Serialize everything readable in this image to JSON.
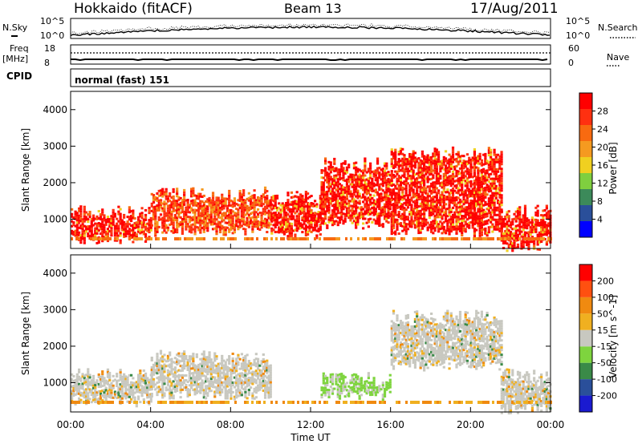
{
  "header": {
    "title": "Hokkaido (fitACF)",
    "beam": "Beam 13",
    "date": "17/Aug/2011"
  },
  "top_panels": {
    "nsky_label": "N.Sky",
    "nsky_ticks": [
      "10^5",
      "10^0"
    ],
    "nsearch_label": "N.Search",
    "nsearch_ticks": [
      "10^5",
      "10^0"
    ],
    "freq_label_1": "Freq",
    "freq_label_2": "[MHz]",
    "freq_ticks": [
      "18",
      "8"
    ],
    "nave_label": "Nave",
    "nave_ticks": [
      "60",
      "0"
    ],
    "cpid_label": "CPID",
    "cpid_value": "normal (fast) 151"
  },
  "colors": {
    "power": [
      "#0000ff",
      "#2a4f9a",
      "#3c8a5a",
      "#7fcf3f",
      "#f0d020",
      "#f59a20",
      "#f86a10",
      "#ff3010",
      "#ff0000"
    ],
    "velocity": [
      "#1a1ad0",
      "#2a4f9a",
      "#3a8a48",
      "#7ed43e",
      "#c8c8c0",
      "#f0b020",
      "#f08a10",
      "#ff5010",
      "#ff0000"
    ]
  },
  "chart_data": [
    {
      "type": "heatmap",
      "name": "power",
      "xlabel": "Time UT",
      "ylabel": "Slant Range [km]",
      "x_ticks": [
        "00:00",
        "04:00",
        "08:00",
        "12:00",
        "16:00",
        "20:00",
        "00:00"
      ],
      "y_ticks": [
        "1000",
        "2000",
        "3000",
        "4000"
      ],
      "ylim": [
        200,
        4500
      ],
      "colorbar_label": "Power [dB]",
      "colorbar_ticks": [
        "28",
        "24",
        "20",
        "16",
        "12",
        "8",
        "4"
      ],
      "colorbar_range": [
        0,
        32
      ],
      "echo_bands": [
        {
          "t_start": 0.0,
          "t_end": 4.0,
          "range_low": 500,
          "range_high": 1200,
          "level": "red"
        },
        {
          "t_start": 4.0,
          "t_end": 10.0,
          "range_low": 700,
          "range_high": 1700,
          "level": "orange-red"
        },
        {
          "t_start": 10.0,
          "t_end": 12.5,
          "range_low": 600,
          "range_high": 1600,
          "level": "red"
        },
        {
          "t_start": 12.5,
          "t_end": 16.0,
          "range_low": 900,
          "range_high": 2500,
          "level": "red"
        },
        {
          "t_start": 16.0,
          "t_end": 21.5,
          "range_low": 700,
          "range_high": 2800,
          "level": "red"
        },
        {
          "t_start": 21.5,
          "t_end": 24.0,
          "range_low": 300,
          "range_high": 1200,
          "level": "red"
        }
      ]
    },
    {
      "type": "heatmap",
      "name": "velocity",
      "xlabel": "Time UT",
      "ylabel": "Slant Range [km]",
      "x_ticks": [
        "00:00",
        "04:00",
        "08:00",
        "12:00",
        "16:00",
        "20:00",
        "00:00"
      ],
      "y_ticks": [
        "1000",
        "2000",
        "3000",
        "4000"
      ],
      "ylim": [
        200,
        4500
      ],
      "colorbar_label": "Velocity [m s^-1]",
      "colorbar_ticks": [
        "200",
        "100",
        "50",
        "15",
        "-15",
        "-50",
        "-100",
        "-200"
      ],
      "colorbar_range": [
        -250,
        250
      ],
      "echo_bands": [
        {
          "t_start": 0.0,
          "t_end": 4.0,
          "range_low": 500,
          "range_high": 1200,
          "level": "grey"
        },
        {
          "t_start": 4.0,
          "t_end": 10.0,
          "range_low": 700,
          "range_high": 1700,
          "level": "grey"
        },
        {
          "t_start": 12.5,
          "t_end": 16.0,
          "range_low": 700,
          "range_high": 1100,
          "level": "green"
        },
        {
          "t_start": 16.0,
          "t_end": 21.5,
          "range_low": 1500,
          "range_high": 2800,
          "level": "grey"
        },
        {
          "t_start": 21.5,
          "t_end": 24.0,
          "range_low": 300,
          "range_high": 1200,
          "level": "grey"
        }
      ]
    }
  ]
}
